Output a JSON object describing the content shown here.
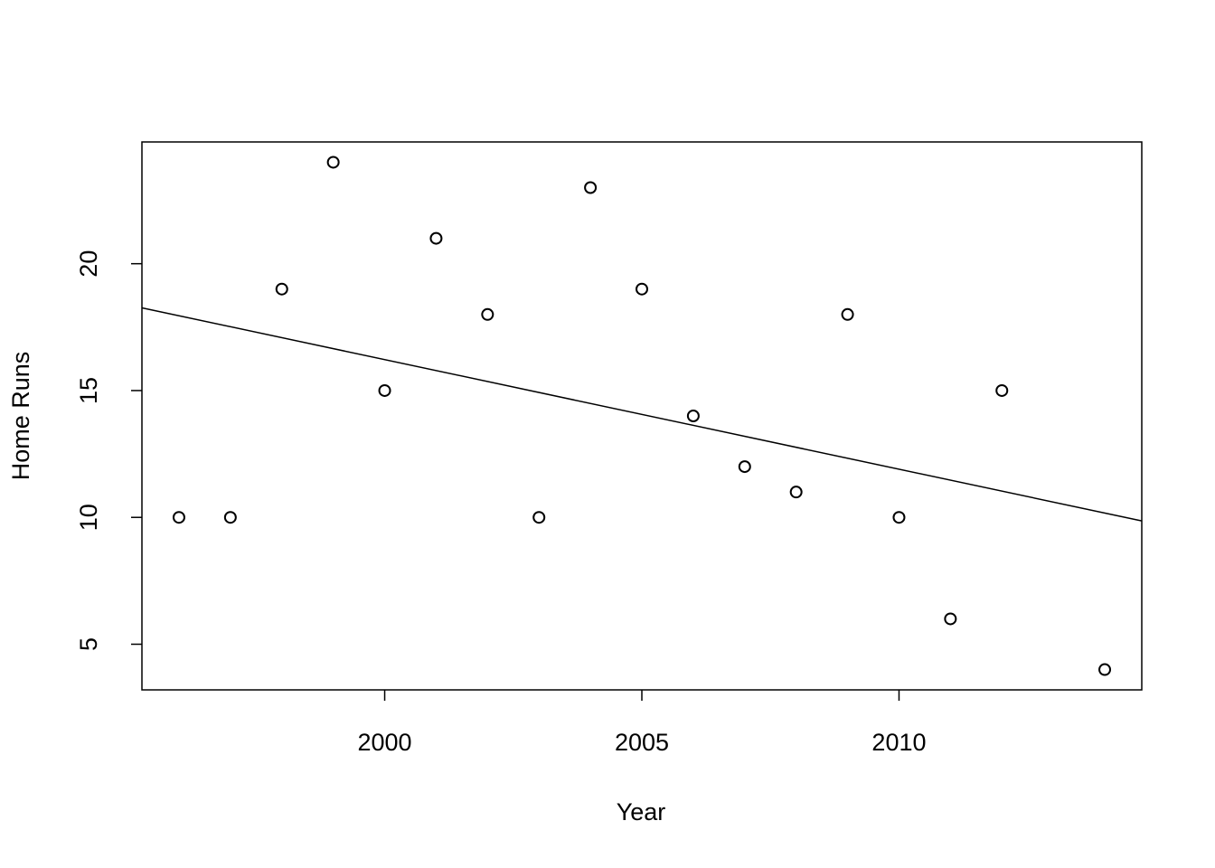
{
  "chart_data": {
    "type": "scatter",
    "x_label": "Year",
    "y_label": "Home Runs",
    "x": [
      1996,
      1997,
      1998,
      1999,
      2000,
      2001,
      2002,
      2003,
      2004,
      2005,
      2006,
      2007,
      2008,
      2009,
      2010,
      2011,
      2012,
      2014
    ],
    "values": [
      10,
      10,
      19,
      24,
      15,
      21,
      18,
      10,
      23,
      19,
      14,
      12,
      11,
      18,
      10,
      6,
      15,
      4
    ],
    "color": "#000000",
    "trend_line": {
      "x": [
        1995.28,
        2014.72
      ],
      "values": [
        18.26,
        9.86
      ]
    },
    "xlim": [
      1995.28,
      2014.72
    ],
    "xticks": [
      2000,
      2005,
      2010
    ],
    "ylim": [
      3.2,
      24.8
    ],
    "yticks": [
      5,
      10,
      15,
      20
    ]
  }
}
